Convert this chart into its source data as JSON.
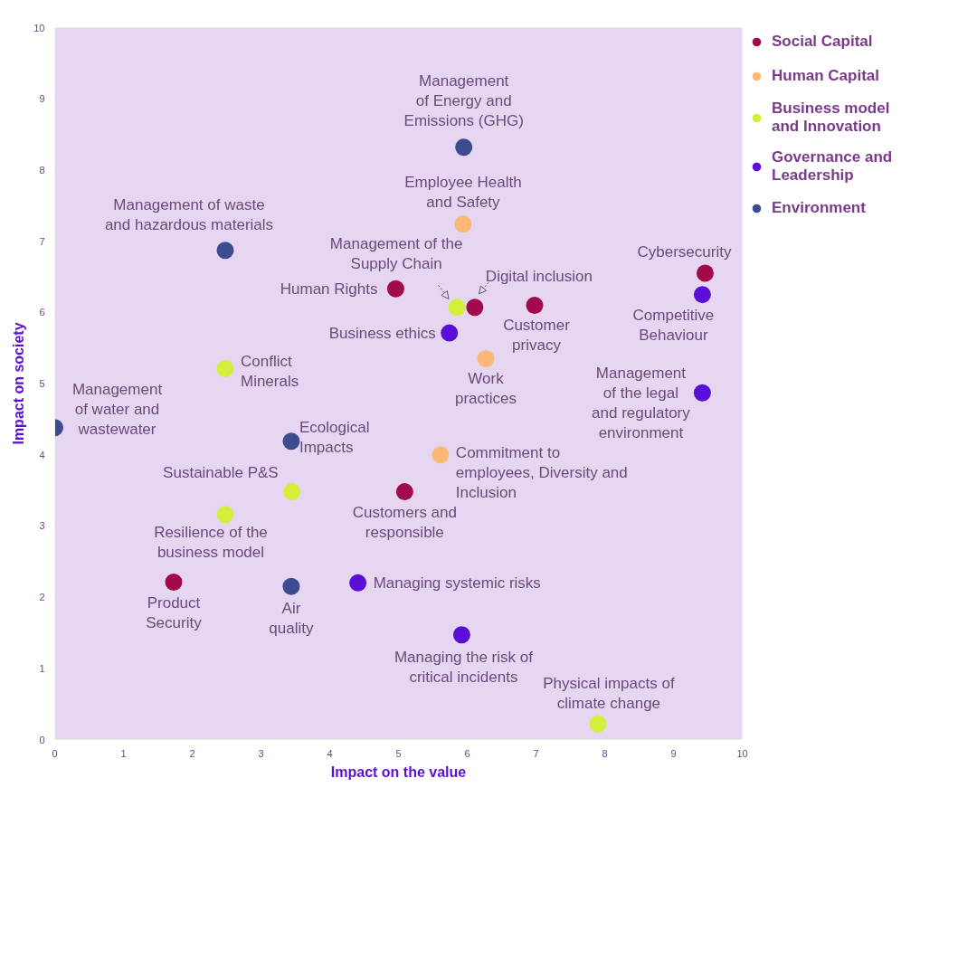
{
  "chart_data": {
    "type": "scatter",
    "xlabel": "Impact on the value",
    "ylabel": "Impact on society",
    "xlim": [
      0,
      10
    ],
    "ylim": [
      0,
      10
    ],
    "xticks": [
      0,
      1,
      2,
      3,
      4,
      5,
      6,
      7,
      8,
      9,
      10
    ],
    "yticks": [
      0,
      1,
      2,
      3,
      4,
      5,
      6,
      7,
      8,
      9,
      10
    ],
    "legend": "right",
    "marker": "circle",
    "series": [
      {
        "name": "Social Capital",
        "color": "#a30a4c",
        "x": [
          9.46,
          4.96,
          6.11,
          6.98,
          5.09,
          1.73
        ],
        "values": [
          6.55,
          6.33,
          6.07,
          6.1,
          3.48,
          2.21
        ]
      },
      {
        "name": "Human Capital",
        "color": "#fbb877",
        "x": [
          5.94,
          6.27,
          5.61
        ],
        "values": [
          7.24,
          5.35,
          4.0
        ]
      },
      {
        "name": "Business model and Innovation",
        "color": "#d4ef3b",
        "x": [
          5.85,
          2.48,
          3.45,
          2.48,
          7.9
        ],
        "values": [
          6.07,
          5.21,
          3.48,
          3.16,
          0.22
        ]
      },
      {
        "name": "Governance and Leadership",
        "color": "#5b0fd6",
        "x": [
          9.42,
          5.74,
          9.42,
          4.41,
          5.92
        ],
        "values": [
          6.25,
          5.71,
          4.87,
          2.2,
          1.47
        ]
      },
      {
        "name": "Environment",
        "color": "#3d4b8f",
        "x": [
          5.95,
          2.48,
          0.0,
          3.44,
          3.44
        ],
        "values": [
          8.32,
          6.87,
          4.38,
          4.19,
          2.15
        ]
      }
    ],
    "annotations": [
      {
        "text": "Cybersecurity",
        "x": 9.46,
        "y": 6.55
      },
      {
        "text": "Human Rights",
        "x": 4.96,
        "y": 6.33
      },
      {
        "text": "Digital inclusion",
        "x": 6.11,
        "y": 6.07
      },
      {
        "text": "Customer\nprivacy",
        "x": 6.98,
        "y": 6.1
      },
      {
        "text": "Customers and\nresponsible",
        "x": 5.09,
        "y": 3.48
      },
      {
        "text": "Product\nSecurity",
        "x": 1.73,
        "y": 2.21
      },
      {
        "text": "Employee Health\nand Safety",
        "x": 5.94,
        "y": 7.24
      },
      {
        "text": "Work\npractices",
        "x": 6.27,
        "y": 5.35
      },
      {
        "text": "Commitment to\nemployees, Diversity and\nInclusion",
        "x": 5.61,
        "y": 4.0
      },
      {
        "text": "Management of the\nSupply Chain",
        "x": 5.85,
        "y": 6.07
      },
      {
        "text": "Conflict\nMinerals",
        "x": 2.48,
        "y": 5.21
      },
      {
        "text": "Sustainable P&S",
        "x": 3.45,
        "y": 3.48
      },
      {
        "text": "Resilience of the\nbusiness model",
        "x": 2.48,
        "y": 3.16
      },
      {
        "text": "Physical impacts of\nclimate change",
        "x": 7.9,
        "y": 0.22
      },
      {
        "text": "Competitive\nBehaviour",
        "x": 9.42,
        "y": 6.25
      },
      {
        "text": "Business ethics",
        "x": 5.74,
        "y": 5.71
      },
      {
        "text": "Management\nof the legal\nand regulatory\nenvironment",
        "x": 9.42,
        "y": 4.87
      },
      {
        "text": "Managing systemic risks",
        "x": 4.41,
        "y": 2.2
      },
      {
        "text": "Managing the risk of\ncritical incidents",
        "x": 5.92,
        "y": 1.47
      },
      {
        "text": "Management\nof Energy and\nEmissions (GHG)",
        "x": 5.95,
        "y": 8.32
      },
      {
        "text": "Management of waste\nand hazardous materials",
        "x": 2.48,
        "y": 6.87
      },
      {
        "text": "Management\nof water and\nwastewater",
        "x": 0.0,
        "y": 4.38
      },
      {
        "text": "Ecological\nImpacts",
        "x": 3.44,
        "y": 4.19
      },
      {
        "text": "Air\nquality",
        "x": 3.44,
        "y": 2.15
      }
    ]
  }
}
